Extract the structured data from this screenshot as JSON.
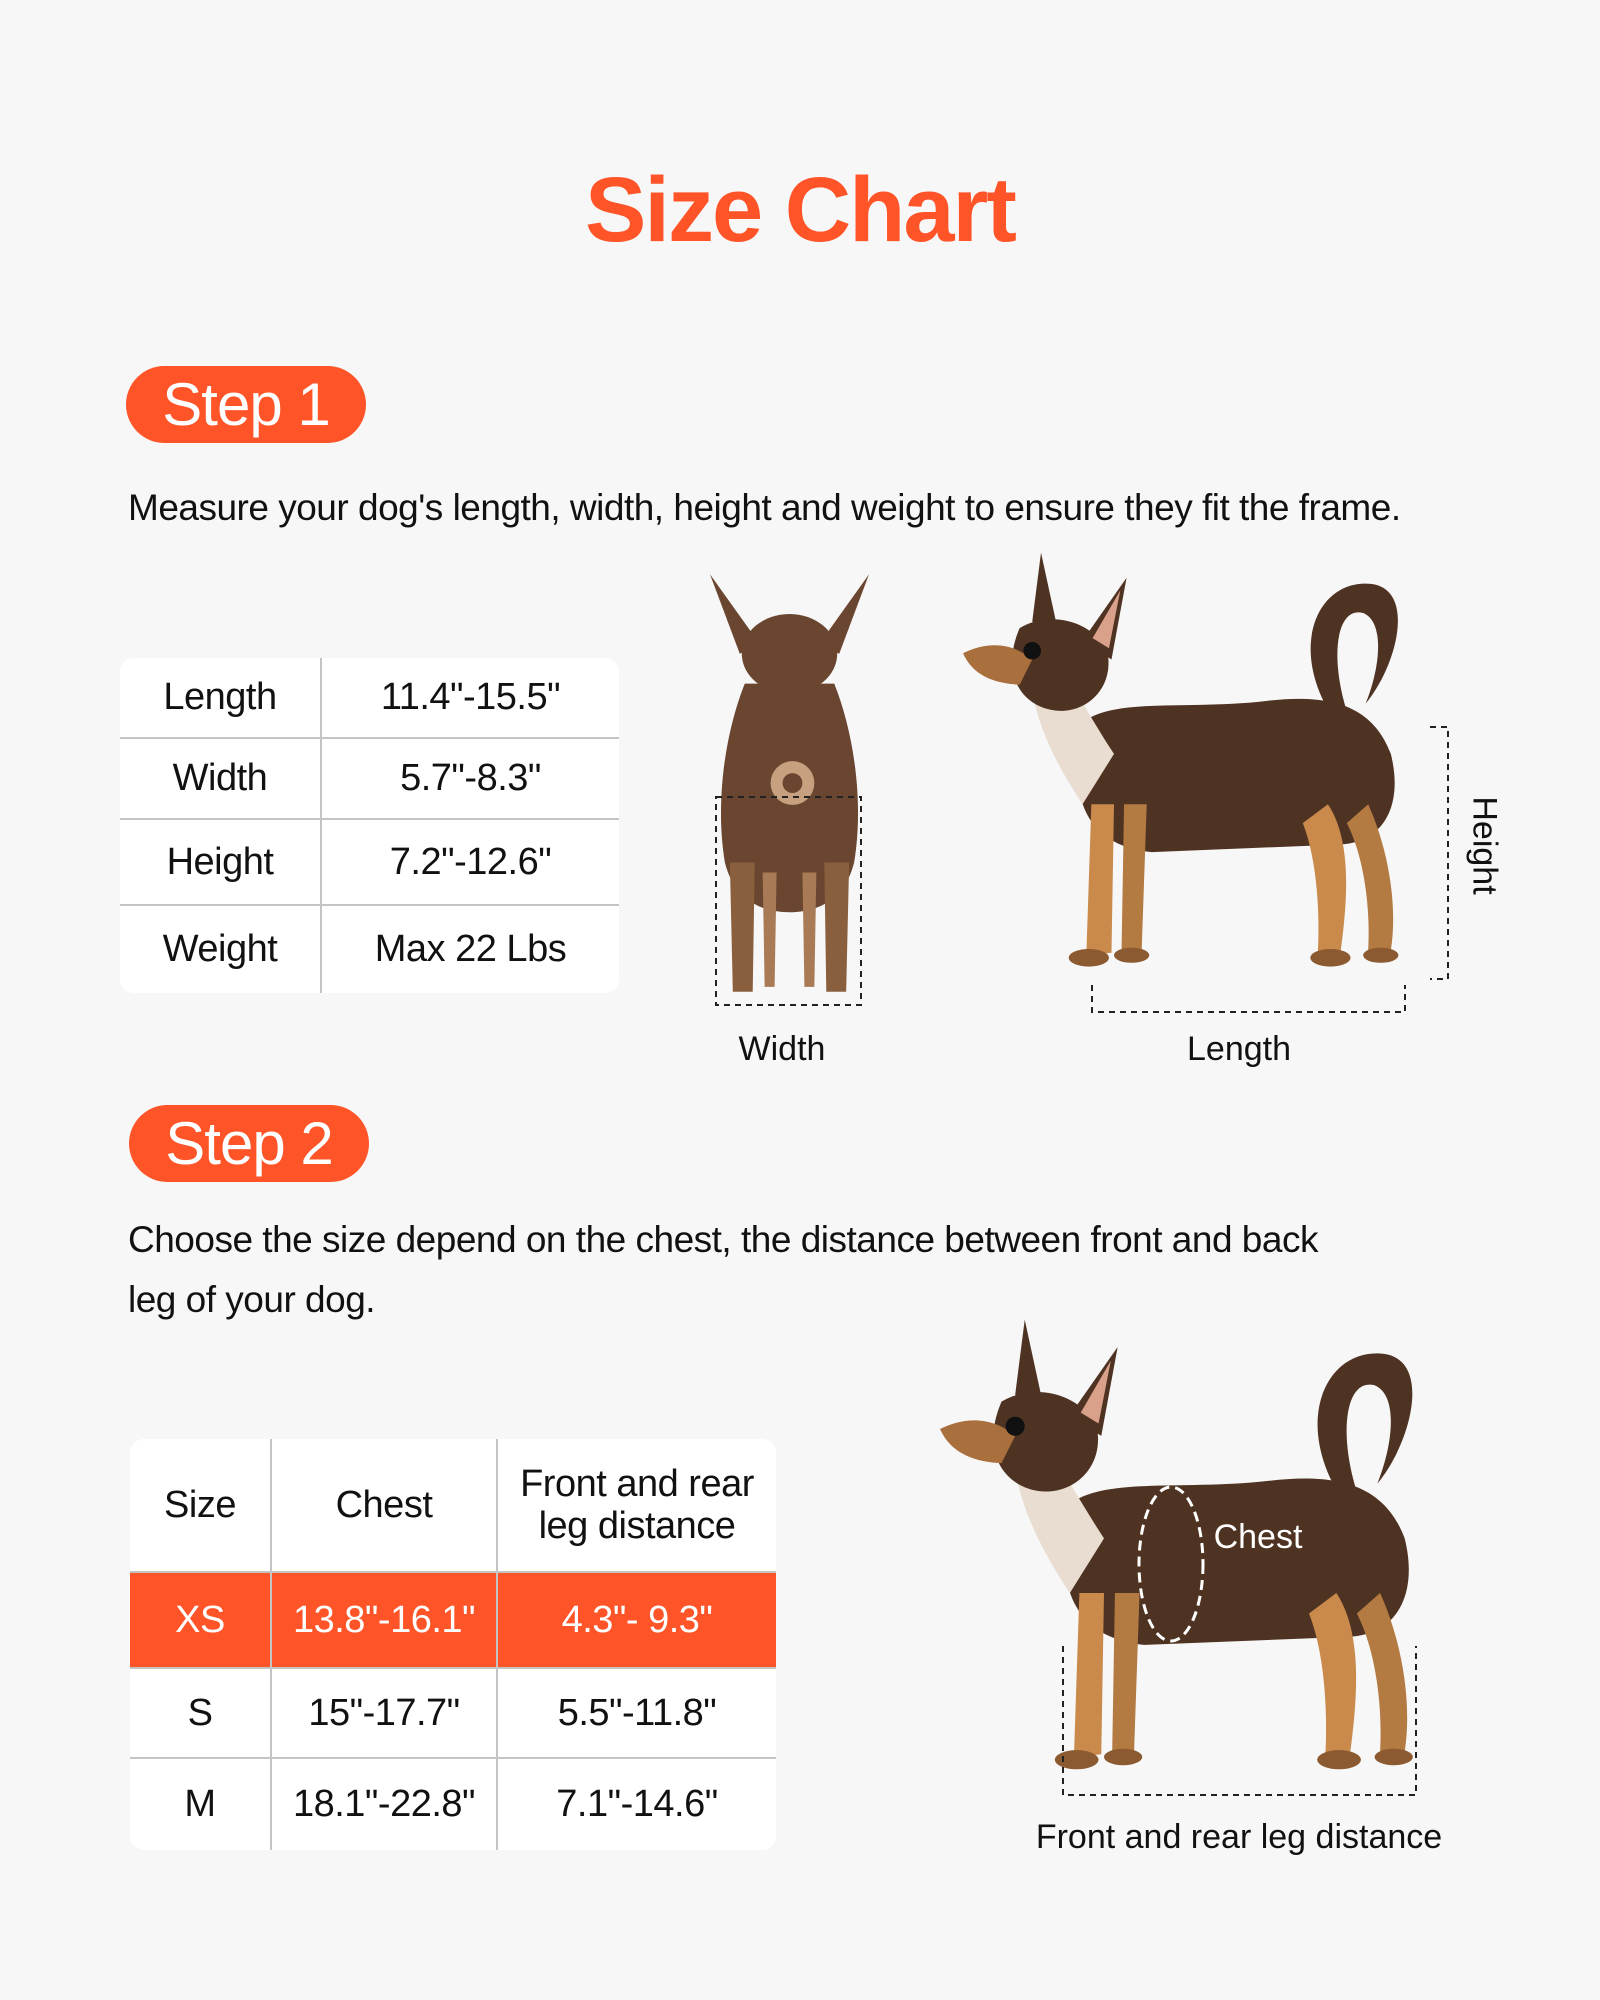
{
  "title": "Size Chart",
  "colors": {
    "accent": "#fe5428",
    "background": "#f7f7f7",
    "dog_dark": "#4f3322",
    "dog_tan": "#c98a4c"
  },
  "step1": {
    "label": "Step 1",
    "description": "Measure your dog's length, width, height and weight to ensure they fit the frame.",
    "table": [
      {
        "name": "Length",
        "value": "11.4\"-15.5\""
      },
      {
        "name": "Width",
        "value": "5.7\"-8.3\""
      },
      {
        "name": "Height",
        "value": "7.2\"-12.6\""
      },
      {
        "name": "Weight",
        "value": "Max 22 Lbs"
      }
    ],
    "diagram_labels": {
      "width": "Width",
      "length": "Length",
      "height": "Height"
    }
  },
  "step2": {
    "label": "Step 2",
    "description_line1": "Choose the size depend on the chest, the distance between front and back",
    "description_line2": "leg of your dog.",
    "table": {
      "headers": [
        "Size",
        "Chest",
        "Front and rear",
        "leg distance"
      ],
      "rows": [
        {
          "size": "XS",
          "chest": "13.8\"-16.1\"",
          "leg_distance": "4.3\"- 9.3\"",
          "highlighted": true
        },
        {
          "size": "S",
          "chest": "15\"-17.7\"",
          "leg_distance": "5.5\"-11.8\""
        },
        {
          "size": "M",
          "chest": "18.1\"-22.8\"",
          "leg_distance": "7.1\"-14.6\""
        }
      ]
    },
    "diagram_labels": {
      "chest": "Chest",
      "leg_distance": "Front and rear leg distance"
    }
  }
}
